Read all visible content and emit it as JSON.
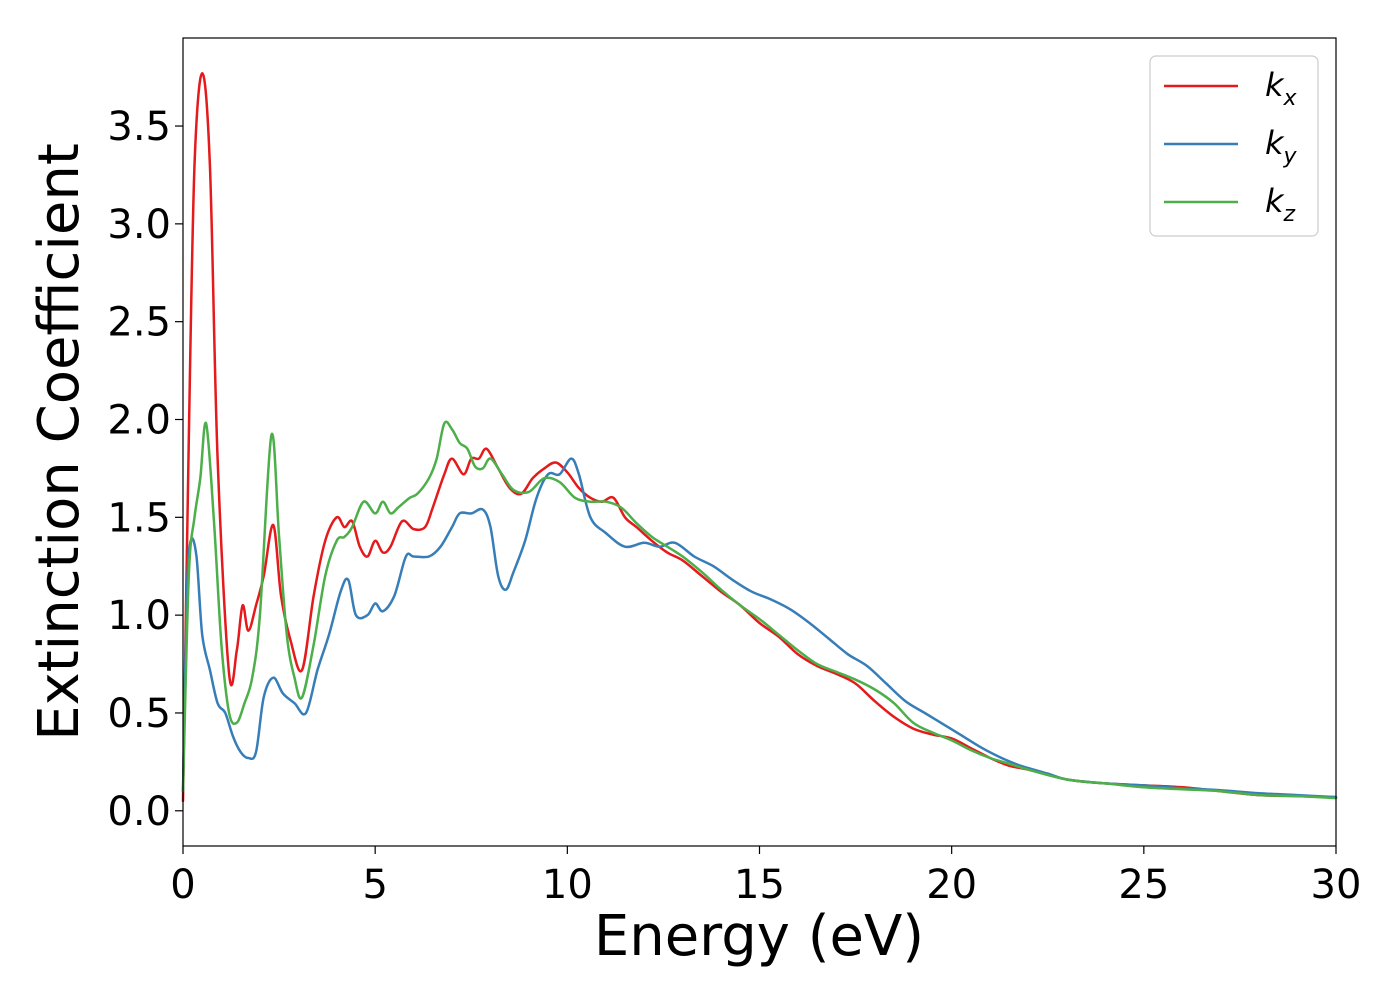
{
  "chart_data": {
    "type": "line",
    "xlabel": "Energy (eV)",
    "ylabel": "Extinction Coefficient",
    "xlim": [
      0,
      30
    ],
    "ylim": [
      -0.18,
      3.95
    ],
    "xticks": [
      0,
      5,
      10,
      15,
      20,
      25,
      30
    ],
    "xtick_labels": [
      "0",
      "5",
      "10",
      "15",
      "20",
      "25",
      "30"
    ],
    "yticks": [
      0.0,
      0.5,
      1.0,
      1.5,
      2.0,
      2.5,
      3.0,
      3.5
    ],
    "ytick_labels": [
      "0.0",
      "0.5",
      "1.0",
      "1.5",
      "2.0",
      "2.5",
      "3.0",
      "3.5"
    ],
    "grid": false,
    "legend_position": "top-right",
    "series": [
      {
        "name": "k",
        "subscript": "x",
        "color": "#e41a1c",
        "x": [
          0,
          0.15,
          0.3,
          0.5,
          0.7,
          0.9,
          1.2,
          1.4,
          1.55,
          1.7,
          1.9,
          2.1,
          2.35,
          2.55,
          2.8,
          3.1,
          3.4,
          3.7,
          4.0,
          4.2,
          4.4,
          4.6,
          4.8,
          5.0,
          5.2,
          5.4,
          5.7,
          6.0,
          6.3,
          6.5,
          6.8,
          7.0,
          7.3,
          7.5,
          7.7,
          7.9,
          8.2,
          8.5,
          8.8,
          9.1,
          9.4,
          9.7,
          10.0,
          10.3,
          10.6,
          10.9,
          11.2,
          11.5,
          11.8,
          12.2,
          12.6,
          13.0,
          13.5,
          14.0,
          14.5,
          15.0,
          15.5,
          16.0,
          16.5,
          17.0,
          17.5,
          18.0,
          18.5,
          19.0,
          19.5,
          20.0,
          20.5,
          21.0,
          21.5,
          22.0,
          23.0,
          24.0,
          25.0,
          26.0,
          27.0,
          28.0,
          29.0,
          30.0
        ],
        "values": [
          0.05,
          1.9,
          3.3,
          3.77,
          3.3,
          1.8,
          0.7,
          0.82,
          1.05,
          0.92,
          1.05,
          1.2,
          1.46,
          1.1,
          0.87,
          0.72,
          1.1,
          1.38,
          1.5,
          1.45,
          1.48,
          1.35,
          1.3,
          1.38,
          1.32,
          1.35,
          1.48,
          1.44,
          1.45,
          1.55,
          1.72,
          1.8,
          1.72,
          1.8,
          1.8,
          1.85,
          1.75,
          1.65,
          1.62,
          1.7,
          1.75,
          1.78,
          1.73,
          1.65,
          1.6,
          1.58,
          1.6,
          1.5,
          1.45,
          1.38,
          1.32,
          1.28,
          1.2,
          1.12,
          1.05,
          0.96,
          0.89,
          0.8,
          0.74,
          0.7,
          0.65,
          0.56,
          0.48,
          0.42,
          0.39,
          0.37,
          0.32,
          0.27,
          0.23,
          0.21,
          0.16,
          0.14,
          0.13,
          0.12,
          0.1,
          0.08,
          0.075,
          0.07
        ]
      },
      {
        "name": "k",
        "subscript": "y",
        "color": "#377eb8",
        "x": [
          0,
          0.1,
          0.2,
          0.35,
          0.5,
          0.7,
          0.9,
          1.1,
          1.3,
          1.5,
          1.7,
          1.9,
          2.1,
          2.35,
          2.6,
          2.9,
          3.2,
          3.5,
          3.8,
          4.1,
          4.3,
          4.5,
          4.8,
          5.0,
          5.2,
          5.5,
          5.8,
          6.0,
          6.4,
          6.7,
          7.0,
          7.2,
          7.5,
          7.8,
          8.0,
          8.2,
          8.4,
          8.6,
          8.9,
          9.2,
          9.5,
          9.8,
          10.1,
          10.3,
          10.6,
          11.0,
          11.5,
          12.0,
          12.4,
          12.8,
          13.3,
          13.8,
          14.3,
          14.8,
          15.3,
          15.8,
          16.3,
          16.8,
          17.3,
          17.8,
          18.3,
          18.8,
          19.3,
          19.8,
          20.3,
          20.8,
          21.3,
          21.8,
          22.5,
          23.0,
          24.0,
          25.0,
          26.0,
          27.0,
          28.0,
          29.0,
          30.0
        ],
        "values": [
          0.1,
          1.1,
          1.38,
          1.3,
          0.9,
          0.72,
          0.55,
          0.5,
          0.38,
          0.3,
          0.27,
          0.3,
          0.58,
          0.68,
          0.6,
          0.55,
          0.5,
          0.72,
          0.9,
          1.12,
          1.18,
          1.0,
          1.0,
          1.06,
          1.02,
          1.1,
          1.3,
          1.3,
          1.3,
          1.35,
          1.45,
          1.52,
          1.52,
          1.54,
          1.45,
          1.2,
          1.13,
          1.22,
          1.38,
          1.6,
          1.72,
          1.72,
          1.8,
          1.72,
          1.5,
          1.42,
          1.35,
          1.37,
          1.35,
          1.37,
          1.3,
          1.25,
          1.18,
          1.12,
          1.08,
          1.03,
          0.96,
          0.88,
          0.8,
          0.74,
          0.65,
          0.56,
          0.5,
          0.44,
          0.38,
          0.32,
          0.27,
          0.23,
          0.19,
          0.16,
          0.14,
          0.13,
          0.115,
          0.105,
          0.09,
          0.08,
          0.07
        ]
      },
      {
        "name": "k",
        "subscript": "z",
        "color": "#4daf4a",
        "x": [
          0,
          0.15,
          0.3,
          0.45,
          0.6,
          0.8,
          1.0,
          1.2,
          1.4,
          1.6,
          1.8,
          2.0,
          2.3,
          2.5,
          2.7,
          2.9,
          3.1,
          3.4,
          3.7,
          4.0,
          4.2,
          4.4,
          4.7,
          5.0,
          5.2,
          5.4,
          5.6,
          5.9,
          6.1,
          6.4,
          6.6,
          6.8,
          7.0,
          7.2,
          7.4,
          7.6,
          7.8,
          8.0,
          8.3,
          8.6,
          9.0,
          9.4,
          9.8,
          10.2,
          10.6,
          11.0,
          11.4,
          11.8,
          12.2,
          12.6,
          13.0,
          13.5,
          14.0,
          14.5,
          15.0,
          15.5,
          16.0,
          16.5,
          17.0,
          17.5,
          18.0,
          18.5,
          19.0,
          19.5,
          20.0,
          20.5,
          21.0,
          21.5,
          22.0,
          23.0,
          24.0,
          25.0,
          26.0,
          27.0,
          28.0,
          29.0,
          30.0
        ],
        "values": [
          0.1,
          1.2,
          1.5,
          1.7,
          1.98,
          1.5,
          0.85,
          0.5,
          0.45,
          0.55,
          0.68,
          1.0,
          1.92,
          1.4,
          0.9,
          0.68,
          0.58,
          0.85,
          1.2,
          1.38,
          1.4,
          1.45,
          1.58,
          1.52,
          1.58,
          1.52,
          1.55,
          1.6,
          1.62,
          1.7,
          1.8,
          1.98,
          1.95,
          1.88,
          1.85,
          1.76,
          1.75,
          1.8,
          1.72,
          1.64,
          1.63,
          1.7,
          1.68,
          1.6,
          1.58,
          1.58,
          1.55,
          1.47,
          1.4,
          1.35,
          1.3,
          1.22,
          1.13,
          1.05,
          0.98,
          0.9,
          0.82,
          0.75,
          0.71,
          0.67,
          0.62,
          0.55,
          0.45,
          0.4,
          0.36,
          0.31,
          0.27,
          0.24,
          0.21,
          0.16,
          0.14,
          0.12,
          0.11,
          0.1,
          0.08,
          0.075,
          0.065
        ]
      }
    ]
  }
}
